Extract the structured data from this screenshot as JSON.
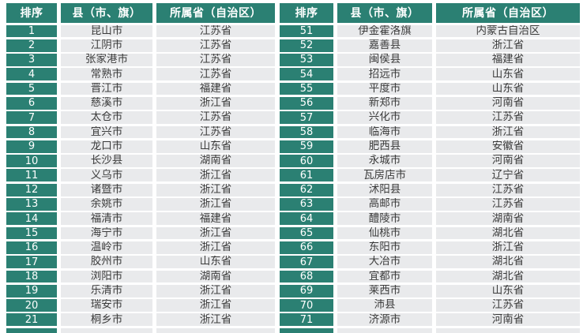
{
  "colors": {
    "accent_teal": "#2B8073",
    "cell_background": "#E9EAEC",
    "header_text": "#FFFFFF",
    "cell_text": "#3C3C3C",
    "page_background": "#FFFFFF"
  },
  "tables": [
    {
      "id": "left",
      "headers": [
        "排序",
        "县（市、旗）",
        "所属省（自治区）"
      ],
      "rows": [
        [
          "1",
          "昆山市",
          "江苏省"
        ],
        [
          "2",
          "江阴市",
          "江苏省"
        ],
        [
          "3",
          "张家港市",
          "江苏省"
        ],
        [
          "4",
          "常熟市",
          "江苏省"
        ],
        [
          "5",
          "晋江市",
          "福建省"
        ],
        [
          "6",
          "慈溪市",
          "浙江省"
        ],
        [
          "7",
          "太仓市",
          "江苏省"
        ],
        [
          "8",
          "宜兴市",
          "江苏省"
        ],
        [
          "9",
          "龙口市",
          "山东省"
        ],
        [
          "10",
          "长沙县",
          "湖南省"
        ],
        [
          "11",
          "义乌市",
          "浙江省"
        ],
        [
          "12",
          "诸暨市",
          "浙江省"
        ],
        [
          "13",
          "余姚市",
          "浙江省"
        ],
        [
          "14",
          "福清市",
          "福建省"
        ],
        [
          "15",
          "海宁市",
          "浙江省"
        ],
        [
          "16",
          "温岭市",
          "浙江省"
        ],
        [
          "17",
          "胶州市",
          "山东省"
        ],
        [
          "18",
          "浏阳市",
          "湖南省"
        ],
        [
          "19",
          "乐清市",
          "浙江省"
        ],
        [
          "20",
          "瑞安市",
          "浙江省"
        ],
        [
          "21",
          "桐乡市",
          "浙江省"
        ]
      ],
      "has_partial_next_row": true
    },
    {
      "id": "right",
      "headers": [
        "排序",
        "县（市、旗）",
        "所属省（自治区）"
      ],
      "rows": [
        [
          "51",
          "伊金霍洛旗",
          "内蒙古自治区"
        ],
        [
          "52",
          "嘉善县",
          "浙江省"
        ],
        [
          "53",
          "闽侯县",
          "福建省"
        ],
        [
          "54",
          "招远市",
          "山东省"
        ],
        [
          "55",
          "平度市",
          "山东省"
        ],
        [
          "56",
          "新郑市",
          "河南省"
        ],
        [
          "57",
          "兴化市",
          "江苏省"
        ],
        [
          "58",
          "临海市",
          "浙江省"
        ],
        [
          "59",
          "肥西县",
          "安徽省"
        ],
        [
          "60",
          "永城市",
          "河南省"
        ],
        [
          "61",
          "瓦房店市",
          "辽宁省"
        ],
        [
          "62",
          "沭阳县",
          "江苏省"
        ],
        [
          "63",
          "高邮市",
          "江苏省"
        ],
        [
          "64",
          "醴陵市",
          "湖南省"
        ],
        [
          "65",
          "仙桃市",
          "湖北省"
        ],
        [
          "66",
          "东阳市",
          "浙江省"
        ],
        [
          "67",
          "大冶市",
          "湖北省"
        ],
        [
          "68",
          "宜都市",
          "湖北省"
        ],
        [
          "69",
          "莱西市",
          "山东省"
        ],
        [
          "70",
          "沛县",
          "江苏省"
        ],
        [
          "71",
          "济源市",
          "河南省"
        ]
      ],
      "has_partial_next_row": true
    }
  ]
}
